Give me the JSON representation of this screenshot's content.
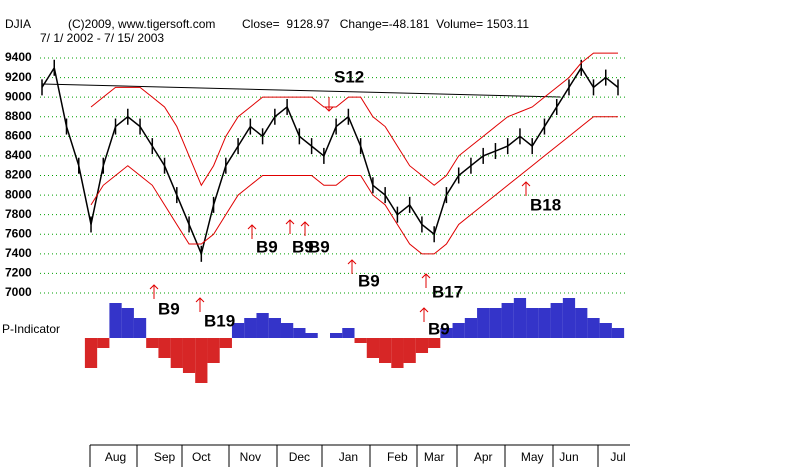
{
  "chart_data": {
    "type": "line",
    "title": "DJIA",
    "copyright": "(C)2009, www.tigersoft.com",
    "stats": "Close=  9128.97   Change=-48.181  Volume= 1503.11",
    "date_range": "7/ 1/ 2002 - 7/ 15/ 2003",
    "indicator_label": "P-Indicator",
    "categories": [
      null,
      null,
      null,
      null,
      null,
      null,
      "Aug",
      null,
      null,
      null,
      "Sep",
      null,
      null,
      "Oct",
      null,
      null,
      null,
      "Nov",
      null,
      null,
      null,
      "Dec",
      null,
      null,
      null,
      "Jan",
      null,
      null,
      null,
      "Feb",
      null,
      null,
      "Mar",
      null,
      null,
      null,
      "Apr",
      null,
      null,
      null,
      "May",
      null,
      null,
      "Jun",
      null,
      null,
      null,
      "Jul"
    ],
    "series": [
      {
        "name": "DJIA",
        "color": "#000000",
        "values": [
          9100,
          9300,
          8700,
          8300,
          7700,
          8300,
          8700,
          8800,
          8700,
          8500,
          8300,
          8000,
          7700,
          7400,
          7900,
          8300,
          8500,
          8700,
          8600,
          8800,
          8900,
          8600,
          8500,
          8400,
          8700,
          8800,
          8500,
          8100,
          8000,
          7800,
          7900,
          7700,
          7600,
          8000,
          8200,
          8300,
          8400,
          8450,
          8500,
          8600,
          8500,
          8700,
          8900,
          9100,
          9300,
          9100,
          9200,
          9100
        ]
      },
      {
        "name": "Upper Band",
        "color": "#e00000",
        "values": [
          null,
          null,
          null,
          null,
          8900,
          9000,
          9100,
          9100,
          9100,
          9000,
          8900,
          8700,
          8400,
          8100,
          8300,
          8600,
          8800,
          8900,
          9000,
          9000,
          9000,
          9000,
          9000,
          8900,
          8900,
          9000,
          9000,
          8800,
          8700,
          8500,
          8300,
          8200,
          8100,
          8200,
          8400,
          8500,
          8600,
          8700,
          8800,
          8850,
          8900,
          9000,
          9100,
          9200,
          9350,
          9450,
          9450,
          9450
        ]
      },
      {
        "name": "Lower Band",
        "color": "#e00000",
        "values": [
          null,
          null,
          null,
          null,
          7900,
          8100,
          8200,
          8300,
          8200,
          8100,
          7900,
          7700,
          7500,
          7500,
          7600,
          7800,
          8000,
          8100,
          8200,
          8200,
          8200,
          8200,
          8200,
          8100,
          8100,
          8200,
          8200,
          8000,
          7900,
          7700,
          7500,
          7400,
          7400,
          7500,
          7700,
          7800,
          7900,
          8000,
          8100,
          8200,
          8300,
          8400,
          8500,
          8600,
          8700,
          8800,
          8800,
          8800
        ]
      }
    ],
    "indicator": {
      "pos_color": "#1010c0",
      "neg_color": "#d00000",
      "values": [
        null,
        null,
        null,
        null,
        -30,
        -10,
        35,
        30,
        20,
        -10,
        -20,
        -30,
        -35,
        -45,
        -25,
        -10,
        15,
        20,
        25,
        20,
        15,
        10,
        5,
        0,
        5,
        10,
        -5,
        -20,
        -25,
        -30,
        -25,
        -15,
        -10,
        10,
        15,
        20,
        30,
        30,
        35,
        40,
        30,
        30,
        35,
        40,
        30,
        20,
        15,
        10
      ]
    },
    "signals": [
      "S12",
      "B9",
      "B9",
      "B9",
      "B9",
      "B17",
      "B18",
      "B9",
      "B19",
      "B9"
    ],
    "ylim": [
      7000,
      9400
    ],
    "yticks": [
      7000,
      7200,
      7400,
      7600,
      7800,
      8000,
      8200,
      8400,
      8600,
      8800,
      9000,
      9200,
      9400
    ],
    "grid": true,
    "grid_color": "#00a000"
  }
}
